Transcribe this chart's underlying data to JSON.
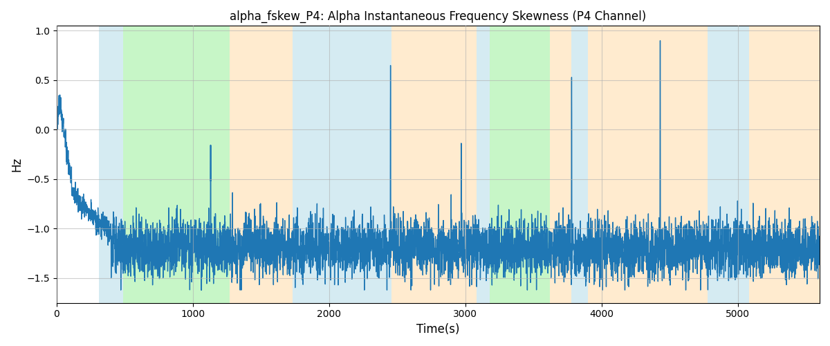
{
  "title": "alpha_fskew_P4: Alpha Instantaneous Frequency Skewness (P4 Channel)",
  "xlabel": "Time(s)",
  "ylabel": "Hz",
  "ylim": [
    -1.75,
    1.05
  ],
  "xlim": [
    0,
    5600
  ],
  "line_color": "#1f77b4",
  "line_width": 1.0,
  "background_regions": [
    {
      "xmin": 310,
      "xmax": 490,
      "color": "#add8e6",
      "alpha": 0.5
    },
    {
      "xmin": 490,
      "xmax": 1270,
      "color": "#90ee90",
      "alpha": 0.5
    },
    {
      "xmin": 1270,
      "xmax": 1730,
      "color": "#ffd9a0",
      "alpha": 0.5
    },
    {
      "xmin": 1730,
      "xmax": 2460,
      "color": "#add8e6",
      "alpha": 0.5
    },
    {
      "xmin": 2460,
      "xmax": 3080,
      "color": "#ffd9a0",
      "alpha": 0.5
    },
    {
      "xmin": 3080,
      "xmax": 3180,
      "color": "#add8e6",
      "alpha": 0.5
    },
    {
      "xmin": 3180,
      "xmax": 3620,
      "color": "#90ee90",
      "alpha": 0.5
    },
    {
      "xmin": 3620,
      "xmax": 3780,
      "color": "#ffd9a0",
      "alpha": 0.5
    },
    {
      "xmin": 3780,
      "xmax": 3900,
      "color": "#add8e6",
      "alpha": 0.5
    },
    {
      "xmin": 3900,
      "xmax": 4780,
      "color": "#ffd9a0",
      "alpha": 0.5
    },
    {
      "xmin": 4780,
      "xmax": 5080,
      "color": "#add8e6",
      "alpha": 0.5
    },
    {
      "xmin": 5080,
      "xmax": 5600,
      "color": "#ffd9a0",
      "alpha": 0.5
    }
  ],
  "grid": true,
  "grid_color": "#b0b0b0",
  "grid_alpha": 0.6,
  "figsize": [
    12.0,
    5.0
  ],
  "dpi": 100,
  "seed": 42,
  "n_points": 5600
}
